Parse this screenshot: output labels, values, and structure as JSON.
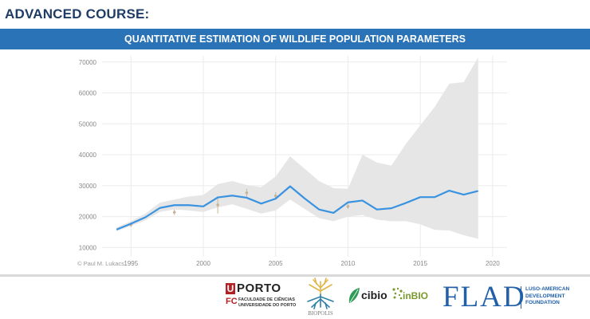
{
  "header": {
    "heading": "ADVANCED COURSE:",
    "banner": "QUANTITATIVE ESTIMATION OF WILDLIFE POPULATION PARAMETERS"
  },
  "colors": {
    "heading": "#1f3c67",
    "banner_bg": "#2a73b7",
    "line": "#3a93e0",
    "band": "#e6e6e6",
    "points": "#c9b49a"
  },
  "chart_data": {
    "type": "line",
    "title": "",
    "xlabel": "",
    "ylabel": "",
    "xlim": [
      1993,
      2021
    ],
    "ylim": [
      7000,
      72000
    ],
    "xticks": [
      "1995",
      "2000",
      "2005",
      "2010",
      "2015",
      "2020"
    ],
    "yticks": [
      "10000",
      "20000",
      "30000",
      "40000",
      "50000",
      "60000",
      "70000"
    ],
    "grid": true,
    "credit": "© Paul M. Lukacs",
    "series": [
      {
        "kind": "line",
        "x": [
          1994,
          1995,
          1996,
          1997,
          1998,
          1999,
          2000,
          2001,
          2002,
          2003,
          2004,
          2005,
          2006,
          2007,
          2008,
          2009,
          2010,
          2011,
          2012,
          2013,
          2014,
          2015,
          2016,
          2017,
          2018,
          2019
        ],
        "y": [
          15800,
          17700,
          19800,
          22800,
          23700,
          23700,
          23300,
          26200,
          26800,
          26100,
          24200,
          25800,
          29800,
          25900,
          22300,
          21200,
          24600,
          25200,
          22300,
          22700,
          24400,
          26300,
          26300,
          28400,
          27100,
          28300
        ]
      },
      {
        "kind": "band",
        "x": [
          1994,
          1995,
          1996,
          1997,
          1998,
          1999,
          2000,
          2001,
          2002,
          2003,
          2004,
          2005,
          2006,
          2007,
          2008,
          2009,
          2010,
          2011,
          2012,
          2013,
          2014,
          2015,
          2016,
          2017,
          2018,
          2019
        ],
        "lower": [
          15300,
          17000,
          18800,
          21500,
          22300,
          22000,
          21500,
          23000,
          24000,
          22500,
          21000,
          22000,
          25500,
          22500,
          19500,
          18500,
          20000,
          20500,
          19000,
          18500,
          18500,
          17500,
          15700,
          15500,
          14000,
          12800
        ],
        "upper": [
          16500,
          18500,
          21000,
          24500,
          25500,
          26500,
          27000,
          30500,
          31500,
          30200,
          29500,
          33000,
          39500,
          35500,
          31500,
          29200,
          29000,
          40000,
          37500,
          36500,
          43500,
          49500,
          55500,
          63000,
          63500,
          71500
        ]
      },
      {
        "kind": "points",
        "x": [
          1995,
          1998,
          2001,
          2003,
          2005,
          2010
        ],
        "y": [
          17400,
          21400,
          23800,
          27700,
          26700,
          23300
        ],
        "err": [
          800,
          900,
          2800,
          1300,
          1200,
          800
        ]
      }
    ]
  },
  "footer": {
    "porto": {
      "u": "U",
      "word": "PORTO",
      "fc": "FC",
      "sub": "FACULDADE DE CIÊNCIAS UNIVERSIDADE DO PORTO"
    },
    "biopolis": "BIOPOLIS",
    "cibio": "cibio",
    "inbio": "inBIO",
    "flad": {
      "word": "FLAD",
      "tagline": "LUSO-AMERICAN DEVELOPMENT FOUNDATION"
    }
  }
}
